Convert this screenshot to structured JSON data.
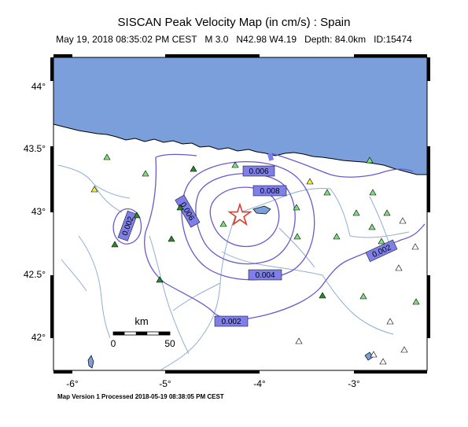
{
  "title": "SISCAN Peak Velocity Map (in cm/s) : Spain",
  "subtitle": "May 19, 2018 08:35:02 PM CEST   M 3.0   N42.98 W4.19   Depth: 84.0km   ID:15474",
  "footer": "Map Version 1 Processed 2018-05-19 08:38:05 PM CEST",
  "lat_labels": [
    "44°",
    "43.5°",
    "43°",
    "42.5°",
    "42°"
  ],
  "lon_labels": [
    "-6°",
    "-5°",
    "-4°",
    "-3°"
  ],
  "scale_bar": {
    "title": "km",
    "min": "0",
    "max": "50"
  },
  "contour_labels": [
    "0.002",
    "0.004",
    "0.006",
    "0.008",
    "0.006",
    "0.002",
    "0.002",
    "0.002"
  ],
  "epicenter": {
    "lat": 42.98,
    "lon": -4.19,
    "magnitude": "M 3.0",
    "depth": "84.0km"
  },
  "colors": {
    "sea": "#7b9fdb",
    "contour": "#6a5acd",
    "label_box": "#7f7fea",
    "river": "#8faed3",
    "epicenter": "#e23a2a",
    "station_green": "#7ee07a",
    "station_darkgreen": "#2a8a2a",
    "station_yellow": "#f5ef3b",
    "station_white": "#ffffff"
  }
}
